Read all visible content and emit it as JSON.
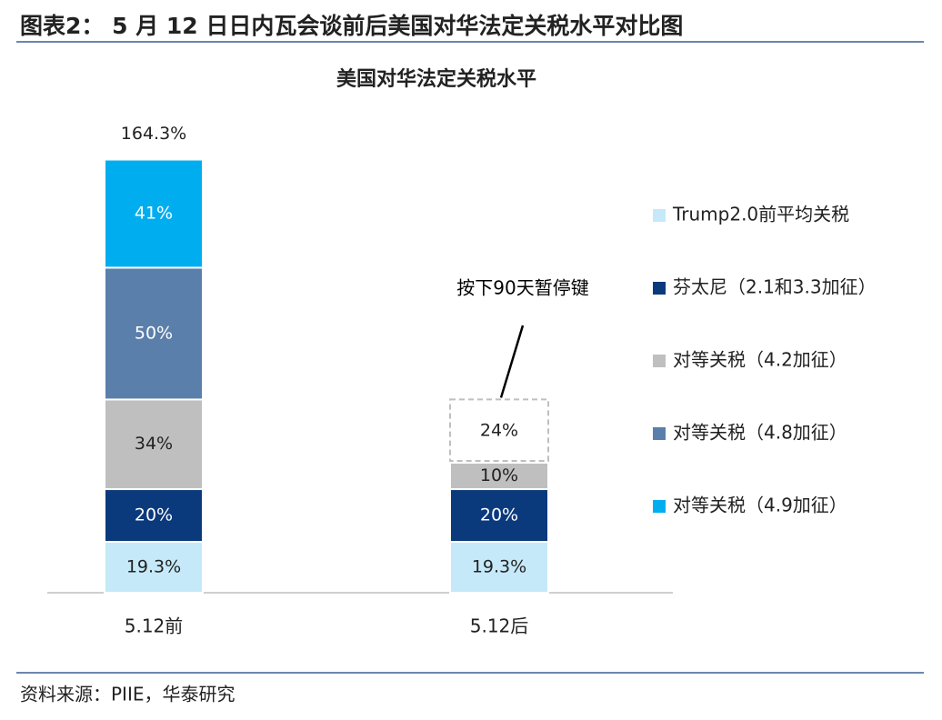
{
  "figure_title": "图表2： 5 月 12 日日内瓦会谈前后美国对华法定关税水平对比图",
  "source": "资料来源：PIIE，华泰研究",
  "chart_data": {
    "type": "stacked-bar",
    "title": "美国对华法定关税水平",
    "categories": [
      "5.12前",
      "5.12后"
    ],
    "series": [
      {
        "name": "Trump2.0前平均关税",
        "color": "#c5e9f8",
        "values": [
          19.3,
          19.3
        ],
        "value_labels": [
          "19.3%",
          "19.3%"
        ]
      },
      {
        "name": "芬太尼（2.1和3.3加征）",
        "color": "#0b3a7c",
        "values": [
          20,
          20
        ],
        "value_labels": [
          "20%",
          "20%"
        ]
      },
      {
        "name": "对等关税（4.2加征）",
        "color": "#bfbfbf",
        "values": [
          34,
          10
        ],
        "value_labels": [
          "34%",
          "10%"
        ]
      },
      {
        "name": "对等关税（4.8加征）",
        "color": "#5b7fab",
        "values": [
          50,
          null
        ],
        "value_labels": [
          "50%",
          null
        ]
      },
      {
        "name": "对等关税（4.9加征）",
        "color": "#00aeef",
        "values": [
          41,
          null
        ],
        "value_labels": [
          "41%",
          null
        ]
      }
    ],
    "totals": [
      164.3,
      null
    ],
    "total_labels": [
      "164.3%",
      null
    ],
    "paused": {
      "text": "按下90天暂停键",
      "category": 1,
      "value": 24,
      "value_label": "24%"
    },
    "ylim": [
      0,
      180
    ],
    "legend": "right"
  }
}
